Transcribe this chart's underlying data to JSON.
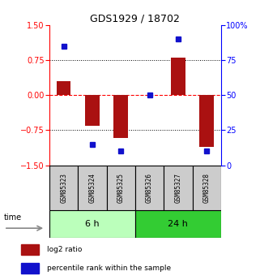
{
  "title": "GDS1929 / 18702",
  "samples": [
    "GSM85323",
    "GSM85324",
    "GSM85325",
    "GSM85326",
    "GSM85327",
    "GSM85328"
  ],
  "log2_ratio": [
    0.3,
    -0.65,
    -0.92,
    0.0,
    0.8,
    -1.1
  ],
  "percentile_rank": [
    85,
    15,
    10,
    50,
    90,
    10
  ],
  "ylim_left": [
    -1.5,
    1.5
  ],
  "ylim_right": [
    0,
    100
  ],
  "yticks_left": [
    -1.5,
    -0.75,
    0,
    0.75,
    1.5
  ],
  "yticks_right": [
    0,
    25,
    50,
    75,
    100
  ],
  "ytick_labels_right": [
    "0",
    "25",
    "50",
    "75",
    "100%"
  ],
  "hlines_dotted": [
    -0.75,
    0.75
  ],
  "hline_dashed": 0,
  "bar_color": "#aa1111",
  "dot_color": "#1111cc",
  "group_labels": [
    "6 h",
    "24 h"
  ],
  "group_ranges": [
    [
      0,
      3
    ],
    [
      3,
      6
    ]
  ],
  "group_color_light": "#bbffbb",
  "group_color_dark": "#33cc33",
  "sample_box_color": "#cccccc",
  "legend_bar_label": "log2 ratio",
  "legend_dot_label": "percentile rank within the sample",
  "time_label": "time",
  "background_color": "#ffffff"
}
